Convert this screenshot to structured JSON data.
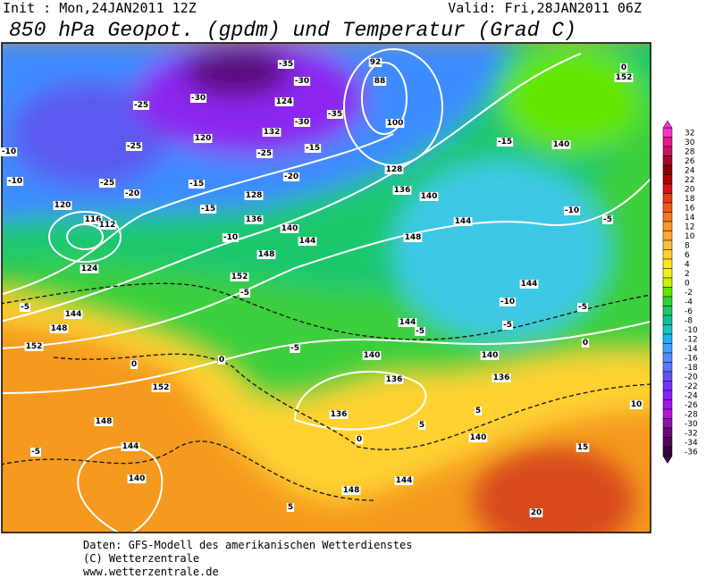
{
  "header": {
    "init": "Init : Mon,24JAN2011 12Z",
    "valid": "Valid: Fri,28JAN2011 06Z",
    "title": "850 hPa Geopot. (gpdm) und Temperatur (Grad C)"
  },
  "colorbar": {
    "values": [
      32,
      30,
      28,
      26,
      24,
      22,
      20,
      18,
      16,
      14,
      12,
      10,
      8,
      6,
      4,
      2,
      0,
      -2,
      -4,
      -6,
      -8,
      -10,
      -12,
      -14,
      -16,
      -18,
      -20,
      -22,
      -24,
      -26,
      -28,
      -30,
      -32,
      -34,
      -36
    ],
    "colors": [
      "#ff33cc",
      "#e6198c",
      "#c81464",
      "#a00a28",
      "#8c0000",
      "#b40000",
      "#d21414",
      "#e63c14",
      "#f05a14",
      "#f57819",
      "#fa9628",
      "#ffaa32",
      "#ffbe3c",
      "#ffd232",
      "#ffe61e",
      "#f0f014",
      "#c8f000",
      "#64e600",
      "#32d232",
      "#1ec864",
      "#14be96",
      "#14c8c8",
      "#1eb4f0",
      "#46a0ff",
      "#508cff",
      "#5a78ff",
      "#6450ff",
      "#7832ff",
      "#8c1eff",
      "#a014f0",
      "#b414d2",
      "#8c14a0",
      "#6e0a78",
      "#500a5a",
      "#3c0046"
    ]
  },
  "map": {
    "contour_labels": [
      "-25",
      "-25",
      "-25",
      "-20",
      "-10",
      "-10",
      "-30",
      "-30",
      "-35",
      "-30",
      "-35",
      "-15",
      "-15",
      "-25",
      "-20",
      "124",
      "120",
      "132",
      "128",
      "136",
      "140",
      "144",
      "148",
      "152",
      "-5",
      "-10",
      "-15",
      "92",
      "88",
      "100",
      "128",
      "136",
      "140",
      "144",
      "148",
      "-15",
      "140",
      "-10",
      "-5",
      "144",
      "152",
      "0",
      "-10",
      "-5",
      "0",
      "-5",
      "140",
      "136",
      "-5",
      "144",
      "140",
      "136",
      "136",
      "-5",
      "0",
      "5",
      "5",
      "144",
      "148",
      "140",
      "10",
      "15",
      "20",
      "5",
      "0",
      "0",
      "152",
      "152",
      "148",
      "144",
      "140",
      "144",
      "148",
      "-5",
      "-5",
      "124",
      "120",
      "116",
      "112"
    ]
  },
  "footer": {
    "lines": [
      "Daten: GFS-Modell des amerikanischen Wetterdienstes",
      "(C) Wetterzentrale",
      "www.wetterzentrale.de"
    ]
  }
}
